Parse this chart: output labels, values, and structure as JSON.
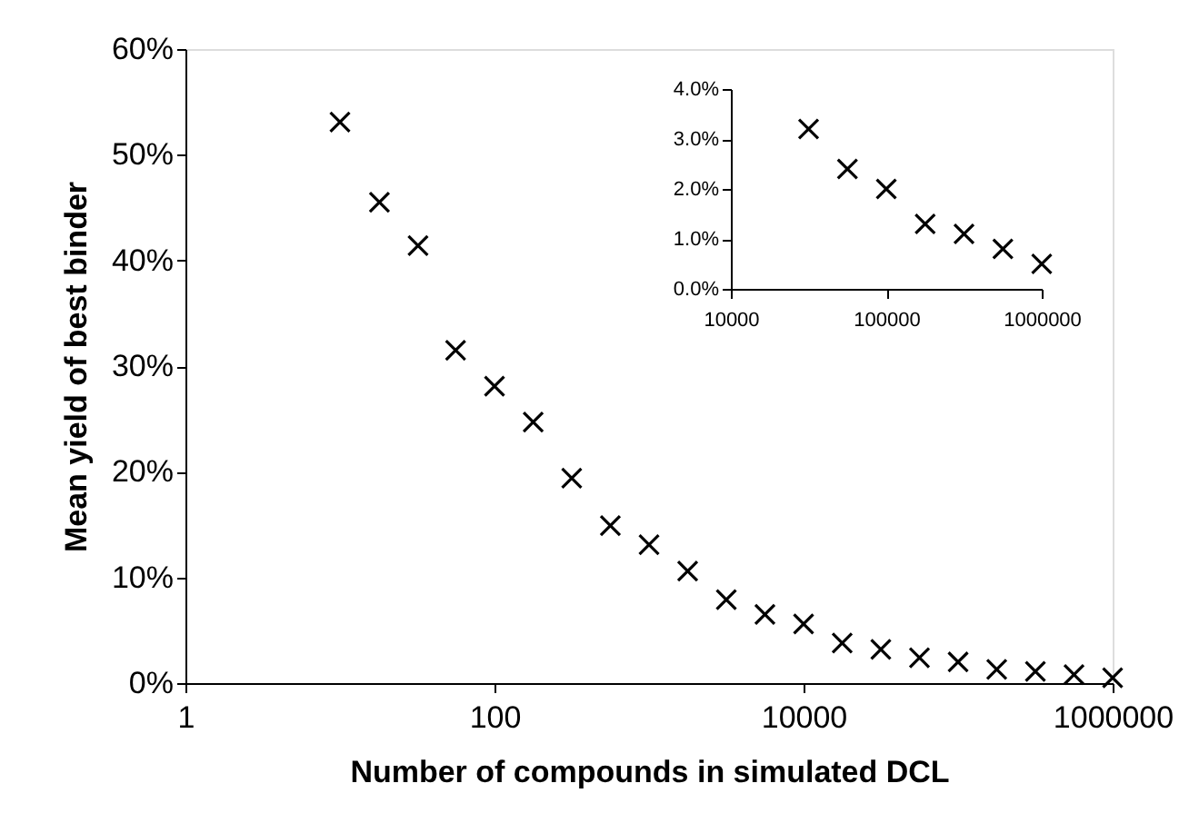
{
  "chart_data": [
    {
      "type": "scatter",
      "xlabel": "Number of compounds in simulated DCL",
      "ylabel": "Mean yield of best binder",
      "log": "x",
      "marker": "cross",
      "grid": false,
      "x": [
        10,
        18,
        32,
        56,
        100,
        178,
        316,
        562,
        1000,
        1778,
        3162,
        5623,
        10000,
        17783,
        31623,
        56234,
        100000,
        177828,
        316228,
        562341,
        1000000
      ],
      "series": [
        {
          "color": "#000000",
          "values": [
            53.1,
            45.5,
            41.4,
            31.5,
            28.1,
            24.7,
            19.4,
            14.9,
            13.1,
            10.6,
            7.9,
            6.5,
            5.6,
            3.8,
            3.2,
            2.4,
            2.0,
            1.3,
            1.1,
            0.8,
            0.5
          ]
        }
      ],
      "xlim": [
        1,
        1000000
      ],
      "xticks": [
        1,
        100,
        10000,
        1000000
      ],
      "ylim": [
        0,
        60
      ],
      "yticks": [
        {
          "value": 0,
          "label": "0%"
        },
        {
          "value": 10,
          "label": "10%"
        },
        {
          "value": 20,
          "label": "20%"
        },
        {
          "value": 30,
          "label": "30%"
        },
        {
          "value": 40,
          "label": "40%"
        },
        {
          "value": 50,
          "label": "50%"
        },
        {
          "value": 60,
          "label": "60%"
        }
      ]
    },
    {
      "type": "scatter",
      "log": "x",
      "marker": "cross",
      "grid": false,
      "x": [
        31623,
        56234,
        100000,
        177828,
        316228,
        562341,
        1000000
      ],
      "series": [
        {
          "color": "#000000",
          "values": [
            3.2,
            2.4,
            2.0,
            1.3,
            1.1,
            0.8,
            0.5
          ]
        }
      ],
      "xlim": [
        10000,
        1000000
      ],
      "xticks": [
        10000,
        100000,
        1000000
      ],
      "ylim": [
        0,
        4
      ],
      "yticks": [
        {
          "value": 0,
          "label": "0.0%"
        },
        {
          "value": 1,
          "label": "1.0%"
        },
        {
          "value": 2,
          "label": "2.0%"
        },
        {
          "value": 3,
          "label": "3.0%"
        },
        {
          "value": 4,
          "label": "4.0%"
        }
      ]
    }
  ]
}
